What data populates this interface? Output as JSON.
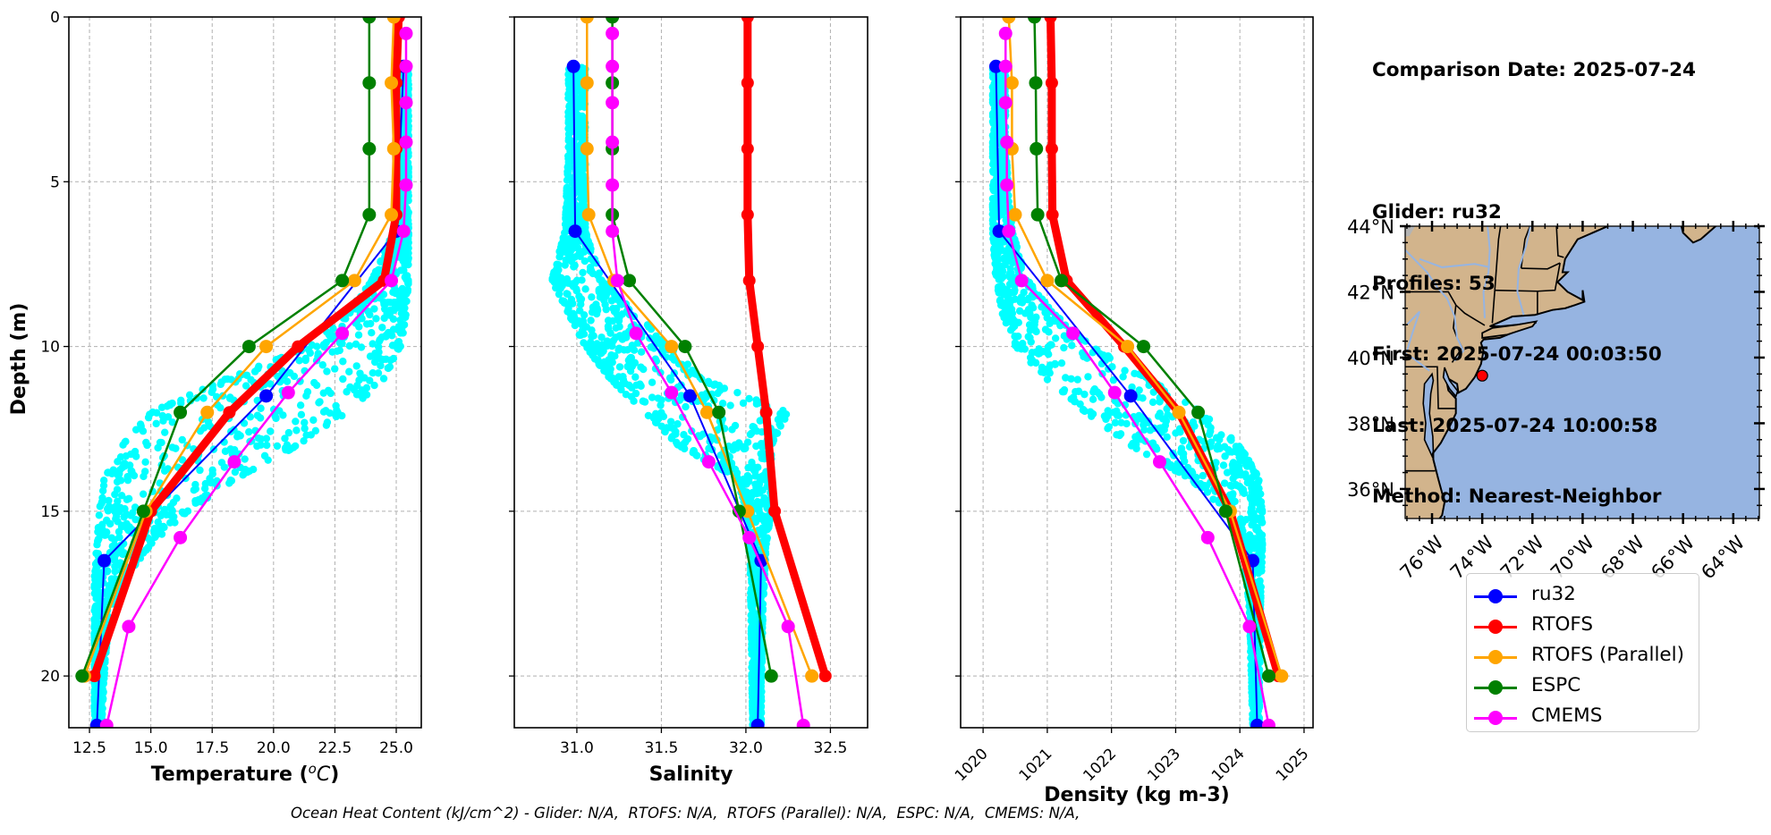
{
  "info_panel": {
    "lines": [
      "Comparison Date: 2025-07-24",
      "",
      "Glider: ru32",
      "Profiles: 53",
      "First: 2025-07-24 00:03:50",
      "Last: 2025-07-24 10:00:58",
      "Method: Nearest-Neighbor"
    ]
  },
  "footer": "Ocean Heat Content (kJ/cm^2) - Glider: N/A,  RTOFS: N/A,  RTOFS (Parallel): N/A,  ESPC: N/A,  CMEMS: N/A,",
  "legend": [
    {
      "name": "ru32",
      "color": "#0000ff"
    },
    {
      "name": "RTOFS",
      "color": "#ff0000"
    },
    {
      "name": "RTOFS (Parallel)",
      "color": "#ffa500"
    },
    {
      "name": "ESPC",
      "color": "#008000"
    },
    {
      "name": "CMEMS",
      "color": "#ff00ff"
    }
  ],
  "colors": {
    "glider_scatter": "#00ffff",
    "land": "#d2b48c",
    "ocean": "#96b4e1",
    "river": "#96b4e1",
    "grid": "#b0b0b0",
    "glider_location": "#ff0000"
  },
  "chart_data": [
    {
      "type": "line",
      "id": "temperature",
      "title": "",
      "xlabel": "Temperature (°C)",
      "ylabel": "Depth (m)",
      "xlim": [
        11.66,
        26.02
      ],
      "ylim": [
        21.57,
        0
      ],
      "xticks": [
        12.5,
        15.0,
        17.5,
        20.0,
        22.5,
        25.0
      ],
      "xtick_labels": [
        "12.5",
        "15.0",
        "17.5",
        "20.0",
        "22.5",
        "25.0"
      ],
      "yticks": [
        0,
        5,
        10,
        15,
        20
      ],
      "ytick_labels": [
        "0",
        "5",
        "10",
        "15",
        "20"
      ],
      "grid": true,
      "scatter": {
        "name": "glider profiles",
        "profile_count": 53,
        "envelope": [
          {
            "depth": 1.5,
            "min": 25.1,
            "max": 25.5
          },
          {
            "depth": 4,
            "min": 25.1,
            "max": 25.5
          },
          {
            "depth": 6.5,
            "min": 24.9,
            "max": 25.5
          },
          {
            "depth": 8,
            "min": 24.0,
            "max": 25.5
          },
          {
            "depth": 9,
            "min": 23.0,
            "max": 25.4
          },
          {
            "depth": 10,
            "min": 21.5,
            "max": 25.2
          },
          {
            "depth": 11,
            "min": 18.0,
            "max": 24.5
          },
          {
            "depth": 12,
            "min": 15.0,
            "max": 23.0
          },
          {
            "depth": 13,
            "min": 13.8,
            "max": 21.0
          },
          {
            "depth": 14,
            "min": 13.1,
            "max": 18.5
          },
          {
            "depth": 15,
            "min": 12.9,
            "max": 16.5
          },
          {
            "depth": 16,
            "min": 12.8,
            "max": 15.0
          },
          {
            "depth": 17,
            "min": 12.7,
            "max": 14.0
          },
          {
            "depth": 18,
            "min": 12.7,
            "max": 13.3
          },
          {
            "depth": 20,
            "min": 12.7,
            "max": 13.1
          },
          {
            "depth": 21.5,
            "min": 12.7,
            "max": 13.0
          }
        ]
      },
      "series": [
        {
          "name": "ru32",
          "color": "#0000ff",
          "width": 2,
          "depth": [
            1.5,
            6.5,
            11.5,
            16.5,
            21.5
          ],
          "values": [
            25.3,
            25.0,
            19.7,
            13.1,
            12.8
          ]
        },
        {
          "name": "RTOFS",
          "color": "#ff0000",
          "width": 9,
          "depth": [
            0,
            2,
            4,
            6,
            8,
            10,
            12,
            15,
            20
          ],
          "values": [
            25.1,
            25.0,
            25.0,
            25.0,
            24.5,
            21.0,
            18.2,
            15.0,
            12.7
          ]
        },
        {
          "name": "RTOFS (Parallel)",
          "color": "#ffa500",
          "width": 2.5,
          "depth": [
            0,
            2,
            4,
            6,
            8,
            10,
            12,
            15,
            20
          ],
          "values": [
            24.9,
            24.8,
            24.9,
            24.8,
            23.3,
            19.7,
            17.3,
            14.8,
            12.3
          ]
        },
        {
          "name": "ESPC",
          "color": "#008000",
          "width": 2.5,
          "depth": [
            0,
            2,
            4,
            6,
            8,
            10,
            12,
            15,
            20
          ],
          "values": [
            23.9,
            23.9,
            23.9,
            23.9,
            22.8,
            19.0,
            16.2,
            14.7,
            12.2
          ]
        },
        {
          "name": "CMEMS",
          "color": "#ff00ff",
          "width": 2.5,
          "depth": [
            0.5,
            1.5,
            2.6,
            3.8,
            5.1,
            6.5,
            8,
            9.6,
            11.4,
            13.5,
            15.8,
            18.5,
            21.5
          ],
          "values": [
            25.4,
            25.4,
            25.4,
            25.4,
            25.4,
            25.3,
            24.8,
            22.8,
            20.6,
            18.4,
            16.2,
            14.1,
            13.2
          ]
        }
      ]
    },
    {
      "type": "line",
      "id": "salinity",
      "title": "",
      "xlabel": "Salinity",
      "ylabel": "",
      "xlim": [
        30.63,
        32.72
      ],
      "ylim": [
        21.57,
        0
      ],
      "xticks": [
        31.0,
        31.5,
        32.0,
        32.5
      ],
      "xtick_labels": [
        "31.0",
        "31.5",
        "32.0",
        "32.5"
      ],
      "yticks": [
        0,
        5,
        10,
        15,
        20
      ],
      "ytick_labels": [],
      "grid": true,
      "scatter": {
        "name": "glider profiles",
        "envelope": [
          {
            "depth": 1.5,
            "min": 30.95,
            "max": 31.05
          },
          {
            "depth": 4,
            "min": 30.95,
            "max": 31.05
          },
          {
            "depth": 6.5,
            "min": 30.93,
            "max": 31.05
          },
          {
            "depth": 8,
            "min": 30.85,
            "max": 31.15
          },
          {
            "depth": 9,
            "min": 30.95,
            "max": 31.35
          },
          {
            "depth": 10,
            "min": 31.05,
            "max": 31.55
          },
          {
            "depth": 11,
            "min": 31.2,
            "max": 31.75
          },
          {
            "depth": 12,
            "min": 31.4,
            "max": 32.25
          },
          {
            "depth": 13,
            "min": 31.6,
            "max": 32.15
          },
          {
            "depth": 14,
            "min": 31.95,
            "max": 32.15
          },
          {
            "depth": 15,
            "min": 32.0,
            "max": 32.15
          },
          {
            "depth": 16,
            "min": 32.02,
            "max": 32.12
          },
          {
            "depth": 18,
            "min": 32.03,
            "max": 32.1
          },
          {
            "depth": 21.5,
            "min": 32.04,
            "max": 32.09
          }
        ]
      },
      "series": [
        {
          "name": "ru32",
          "color": "#0000ff",
          "width": 2,
          "depth": [
            1.5,
            6.5,
            11.5,
            16.5,
            21.5
          ],
          "values": [
            30.98,
            30.99,
            31.67,
            32.09,
            32.07
          ]
        },
        {
          "name": "RTOFS",
          "color": "#ff0000",
          "width": 9,
          "depth": [
            0,
            2,
            4,
            6,
            8,
            10,
            12,
            15,
            20
          ],
          "values": [
            32.01,
            32.01,
            32.01,
            32.01,
            32.02,
            32.07,
            32.12,
            32.17,
            32.47
          ]
        },
        {
          "name": "RTOFS (Parallel)",
          "color": "#ffa500",
          "width": 2.5,
          "depth": [
            0,
            2,
            4,
            6,
            8,
            10,
            12,
            15,
            20
          ],
          "values": [
            31.06,
            31.06,
            31.06,
            31.07,
            31.22,
            31.56,
            31.77,
            32.01,
            32.39
          ]
        },
        {
          "name": "ESPC",
          "color": "#008000",
          "width": 2.5,
          "depth": [
            0,
            2,
            4,
            6,
            8,
            10,
            12,
            15,
            20
          ],
          "values": [
            31.21,
            31.21,
            31.21,
            31.21,
            31.31,
            31.64,
            31.84,
            31.96,
            32.15
          ]
        },
        {
          "name": "CMEMS",
          "color": "#ff00ff",
          "width": 2.5,
          "depth": [
            0.5,
            1.5,
            2.6,
            3.8,
            5.1,
            6.5,
            8,
            9.6,
            11.4,
            13.5,
            15.8,
            18.5,
            21.5
          ],
          "values": [
            31.21,
            31.21,
            31.21,
            31.21,
            31.21,
            31.21,
            31.24,
            31.35,
            31.56,
            31.78,
            32.02,
            32.25,
            32.34
          ]
        }
      ]
    },
    {
      "type": "line",
      "id": "density",
      "title": "",
      "xlabel": "Density (kg m-3)",
      "ylabel": "",
      "xlim": [
        1019.65,
        1025.14
      ],
      "ylim": [
        21.57,
        0
      ],
      "xticks": [
        1020,
        1021,
        1022,
        1023,
        1024,
        1025
      ],
      "xtick_labels": [
        "1020",
        "1021",
        "1022",
        "1023",
        "1024",
        "1025"
      ],
      "yticks": [
        0,
        5,
        10,
        15,
        20
      ],
      "ytick_labels": [],
      "grid": true,
      "scatter": {
        "name": "glider profiles",
        "envelope": [
          {
            "depth": 1.5,
            "min": 1020.15,
            "max": 1020.35
          },
          {
            "depth": 4,
            "min": 1020.15,
            "max": 1020.35
          },
          {
            "depth": 6.5,
            "min": 1020.15,
            "max": 1020.45
          },
          {
            "depth": 8,
            "min": 1020.2,
            "max": 1020.7
          },
          {
            "depth": 9,
            "min": 1020.3,
            "max": 1021.1
          },
          {
            "depth": 10,
            "min": 1020.5,
            "max": 1021.7
          },
          {
            "depth": 11,
            "min": 1021.0,
            "max": 1022.6
          },
          {
            "depth": 12,
            "min": 1021.6,
            "max": 1023.4
          },
          {
            "depth": 13,
            "min": 1022.3,
            "max": 1024.0
          },
          {
            "depth": 14,
            "min": 1023.2,
            "max": 1024.3
          },
          {
            "depth": 15,
            "min": 1023.8,
            "max": 1024.35
          },
          {
            "depth": 16,
            "min": 1024.05,
            "max": 1024.35
          },
          {
            "depth": 18,
            "min": 1024.15,
            "max": 1024.32
          },
          {
            "depth": 21.5,
            "min": 1024.2,
            "max": 1024.3
          }
        ]
      },
      "series": [
        {
          "name": "ru32",
          "color": "#0000ff",
          "width": 2,
          "depth": [
            1.5,
            6.5,
            11.5,
            16.5,
            21.5
          ],
          "values": [
            1020.2,
            1020.25,
            1022.3,
            1024.2,
            1024.27
          ]
        },
        {
          "name": "RTOFS",
          "color": "#ff0000",
          "width": 9,
          "depth": [
            0,
            2,
            4,
            6,
            8,
            10,
            12,
            15,
            20
          ],
          "values": [
            1021.05,
            1021.07,
            1021.07,
            1021.08,
            1021.3,
            1022.2,
            1023.05,
            1023.85,
            1024.6
          ]
        },
        {
          "name": "RTOFS (Parallel)",
          "color": "#ffa500",
          "width": 2.5,
          "depth": [
            0,
            2,
            4,
            6,
            8,
            10,
            12,
            15,
            20
          ],
          "values": [
            1020.4,
            1020.45,
            1020.45,
            1020.5,
            1021.0,
            1022.25,
            1023.05,
            1023.85,
            1024.65
          ]
        },
        {
          "name": "ESPC",
          "color": "#008000",
          "width": 2.5,
          "depth": [
            0,
            2,
            4,
            6,
            8,
            10,
            12,
            15,
            20
          ],
          "values": [
            1020.8,
            1020.82,
            1020.83,
            1020.85,
            1021.22,
            1022.5,
            1023.35,
            1023.78,
            1024.45
          ]
        },
        {
          "name": "CMEMS",
          "color": "#ff00ff",
          "width": 2.5,
          "depth": [
            0.5,
            1.5,
            2.6,
            3.8,
            5.1,
            6.5,
            8,
            9.6,
            11.4,
            13.5,
            15.8,
            18.5,
            21.5
          ],
          "values": [
            1020.35,
            1020.35,
            1020.35,
            1020.37,
            1020.37,
            1020.4,
            1020.6,
            1021.4,
            1022.05,
            1022.75,
            1023.5,
            1024.15,
            1024.45
          ]
        }
      ]
    },
    {
      "type": "map",
      "id": "location-map",
      "lon_range": [
        -77.07,
        -62.96
      ],
      "lat_range": [
        35.1,
        44.0
      ],
      "lon_ticks": [
        -76,
        -74,
        -72,
        -70,
        -68,
        -66,
        -64
      ],
      "lon_tick_labels": [
        "76°W",
        "74°W",
        "72°W",
        "70°W",
        "68°W",
        "66°W",
        "64°W"
      ],
      "lat_ticks": [
        36,
        38,
        40,
        42,
        44
      ],
      "lat_tick_labels": [
        "36°N",
        "38°N",
        "40°N",
        "42°N",
        "44°N"
      ],
      "glider_position": {
        "lon": -74.0,
        "lat": 39.45
      }
    }
  ]
}
